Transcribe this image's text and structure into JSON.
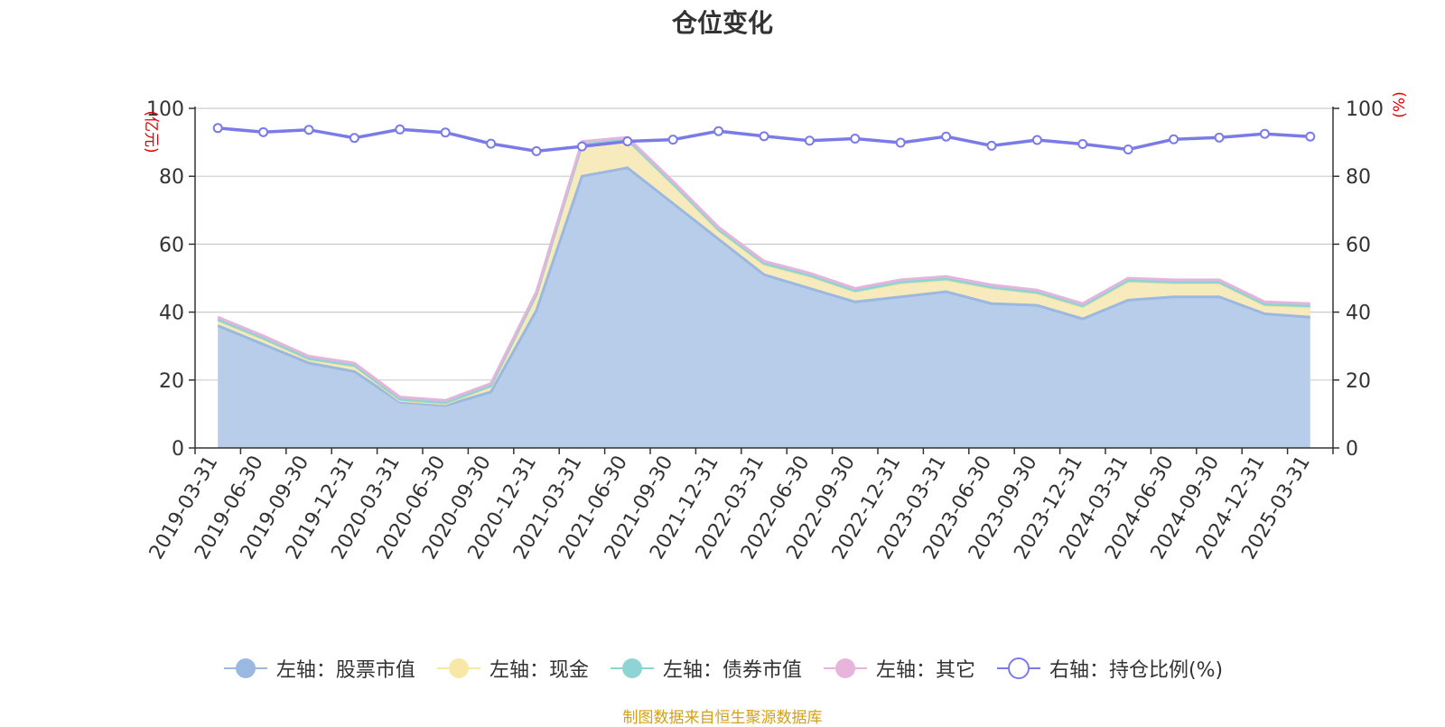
{
  "chart_data": {
    "type": "area",
    "title": "仓位变化",
    "y_left_unit": "(亿元)",
    "y_right_unit": "(%)",
    "ylim_left": [
      0,
      100
    ],
    "ylim_right": [
      0,
      100
    ],
    "y_ticks_left": [
      0,
      20,
      40,
      60,
      80,
      100
    ],
    "y_ticks_right": [
      0,
      20,
      40,
      60,
      80,
      100
    ],
    "grid": true,
    "legend_position": "bottom",
    "categories": [
      "2019-03-31",
      "2019-06-30",
      "2019-09-30",
      "2019-12-31",
      "2020-03-31",
      "2020-06-30",
      "2020-09-30",
      "2020-12-31",
      "2021-03-31",
      "2021-06-30",
      "2021-09-30",
      "2021-12-31",
      "2022-03-31",
      "2022-06-30",
      "2022-09-30",
      "2022-12-31",
      "2023-03-31",
      "2023-06-30",
      "2023-09-30",
      "2023-12-31",
      "2024-03-31",
      "2024-06-30",
      "2024-09-30",
      "2024-12-31",
      "2025-03-31"
    ],
    "stacked_series": [
      {
        "name": "左轴：股票市值",
        "axis": "left",
        "color": "#9bb8e0",
        "fill": "#b8cdea",
        "values": [
          36,
          30.5,
          25,
          22.5,
          13.5,
          12.5,
          16.5,
          40.5,
          80,
          82.5,
          72,
          61.5,
          51,
          47,
          43,
          44.5,
          46,
          42.5,
          42,
          38,
          43.5,
          44.5,
          44.5,
          39.5,
          38.5
        ]
      },
      {
        "name": "左轴：现金",
        "axis": "left",
        "color": "#f2e4a0",
        "fill": "#f7ebbd",
        "values": [
          1.5,
          1.5,
          1,
          1.5,
          0.5,
          0.5,
          1.5,
          4.5,
          9,
          8,
          5.5,
          2.5,
          3,
          3.5,
          3,
          4,
          3.5,
          4.5,
          3.5,
          3.5,
          5.5,
          4,
          4,
          2.5,
          3
        ]
      },
      {
        "name": "左轴：债券市值",
        "axis": "left",
        "color": "#8fd4d4",
        "fill": "#b6e4e4",
        "values": [
          0.3,
          0.3,
          0.3,
          0.3,
          0.3,
          0.3,
          0.3,
          0.3,
          0.3,
          0.3,
          0.3,
          0.3,
          0.3,
          0.3,
          0.3,
          0.3,
          0.3,
          0.3,
          0.3,
          0.3,
          0.3,
          0.3,
          0.3,
          0.3,
          0.3
        ]
      },
      {
        "name": "左轴：其它",
        "axis": "left",
        "color": "#e4b4dc",
        "fill": "#efcde9",
        "values": [
          0.7,
          0.7,
          0.7,
          0.7,
          0.7,
          0.7,
          0.7,
          0.7,
          0.9,
          0.7,
          0.7,
          0.7,
          0.7,
          0.7,
          0.7,
          0.7,
          0.7,
          0.7,
          0.7,
          0.7,
          0.7,
          0.7,
          0.7,
          0.7,
          0.7
        ]
      }
    ],
    "line_series": {
      "name": "右轴：持仓比例(%)",
      "axis": "right",
      "color": "#7b7be8",
      "values": [
        94.2,
        93,
        93.7,
        91.3,
        93.8,
        92.9,
        89.6,
        87.4,
        88.8,
        90.3,
        90.8,
        93.3,
        91.8,
        90.5,
        91.1,
        89.9,
        91.7,
        89,
        90.7,
        89.5,
        87.9,
        90.9,
        91.4,
        92.5,
        91.7
      ]
    }
  },
  "legend": [
    {
      "label": "左轴：股票市值",
      "type": "area",
      "color": "#9bb8e0"
    },
    {
      "label": "左轴：现金",
      "type": "area",
      "color": "#f7e8a8"
    },
    {
      "label": "左轴：债券市值",
      "type": "area",
      "color": "#8fd4d4"
    },
    {
      "label": "左轴：其它",
      "type": "area",
      "color": "#e8b4dc"
    },
    {
      "label": "右轴：持仓比例(%)",
      "type": "line",
      "color": "#7b7be8"
    }
  ],
  "source": "制图数据来自恒生聚源数据库",
  "colors": {
    "axis": "#333333",
    "grid": "#cccccc",
    "unit": "#e00000",
    "source": "#d4a017"
  }
}
